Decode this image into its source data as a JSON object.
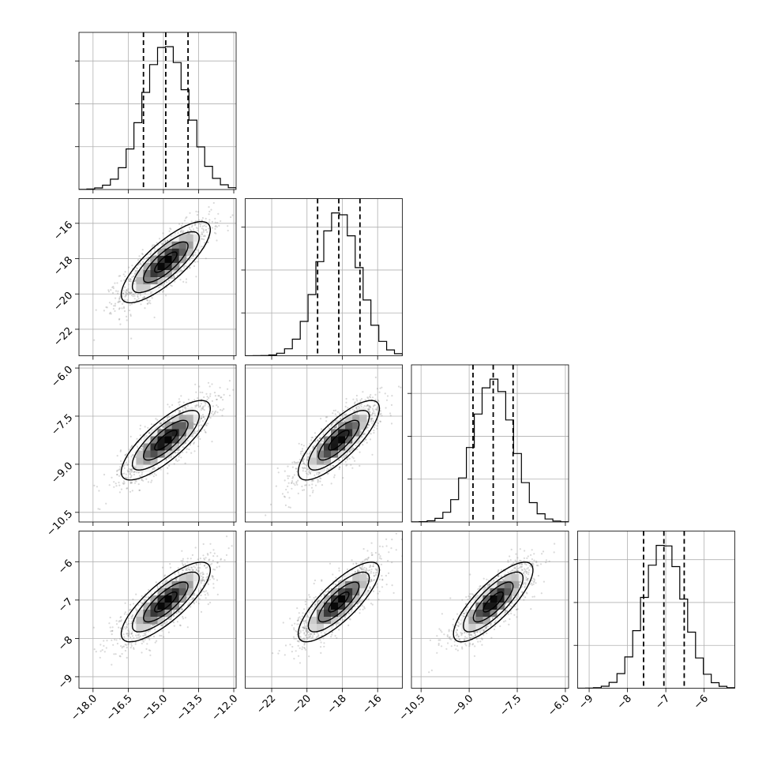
{
  "chart_data": {
    "type": "corner",
    "params": [
      {
        "mean": -14.9,
        "sd": 0.95,
        "range": [
          -18.6,
          -11.9
        ],
        "quantiles": [
          -15.85,
          -14.9,
          -13.95
        ],
        "ticks": [
          -18.0,
          -16.5,
          -15.0,
          -13.5,
          -12.0
        ],
        "tick_labels": [
          "−18.0",
          "−16.5",
          "−15.0",
          "−13.5",
          "−12.0"
        ]
      },
      {
        "mean": -18.2,
        "sd": 1.15,
        "range": [
          -23.5,
          -14.6
        ],
        "quantiles": [
          -19.4,
          -18.2,
          -17.0
        ],
        "ticks": [
          -22,
          -20,
          -18,
          -16
        ],
        "tick_labels": [
          "−22",
          "−20",
          "−18",
          "−16"
        ]
      },
      {
        "mean": -8.25,
        "sd": 0.62,
        "range": [
          -10.8,
          -5.9
        ],
        "quantiles": [
          -8.88,
          -8.25,
          -7.63
        ],
        "ticks": [
          -10.5,
          -9.0,
          -7.5,
          -6.0
        ],
        "tick_labels": [
          "−10.5",
          "−9.0",
          "−7.5",
          "−6.0"
        ]
      },
      {
        "mean": -7.05,
        "sd": 0.52,
        "range": [
          -9.3,
          -5.2
        ],
        "quantiles": [
          -7.58,
          -7.05,
          -6.52
        ],
        "ticks": [
          -9,
          -8,
          -7,
          -6
        ],
        "tick_labels": [
          "−9",
          "−8",
          "−7",
          "−6"
        ]
      }
    ],
    "correlation": 0.8,
    "hist_bins": 20,
    "grid": true,
    "colors": {
      "line": "#000000",
      "scatter": "#808080",
      "grid": "#b0b0b0",
      "background": "#ffffff"
    }
  }
}
